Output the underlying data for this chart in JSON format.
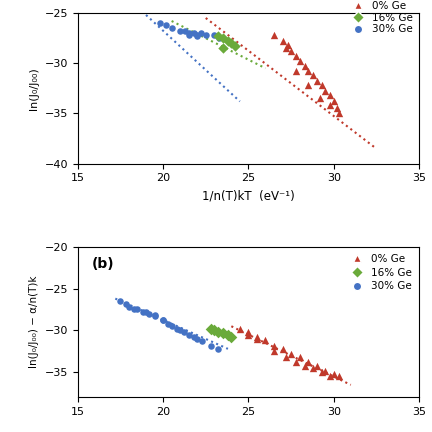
{
  "panel_a": {
    "red_x": [
      26.5,
      27.0,
      27.3,
      27.5,
      27.8,
      28.0,
      28.3,
      28.5,
      28.8,
      29.0,
      29.3,
      29.5,
      29.8,
      30.0,
      30.2,
      27.2,
      27.8,
      28.5,
      29.2,
      29.8,
      30.3
    ],
    "red_y": [
      -27.2,
      -27.8,
      -28.2,
      -28.8,
      -29.3,
      -29.8,
      -30.3,
      -30.8,
      -31.2,
      -31.8,
      -32.2,
      -32.8,
      -33.2,
      -33.8,
      -34.5,
      -28.5,
      -30.8,
      -32.2,
      -33.5,
      -34.2,
      -35.0
    ],
    "green_x": [
      23.2,
      23.5,
      23.8,
      24.0,
      24.2,
      23.5
    ],
    "green_y": [
      -27.3,
      -27.5,
      -27.8,
      -28.0,
      -28.3,
      -28.5
    ],
    "blue_x": [
      19.8,
      20.2,
      20.5,
      21.0,
      21.3,
      21.5,
      21.8,
      22.0,
      22.2,
      22.5,
      23.0,
      23.3,
      21.5,
      22.0
    ],
    "blue_y": [
      -26.0,
      -26.2,
      -26.5,
      -26.8,
      -26.8,
      -27.0,
      -27.0,
      -27.2,
      -27.0,
      -27.2,
      -27.2,
      -27.5,
      -27.2,
      -27.3
    ],
    "red_fit_x": [
      22.5,
      32.5
    ],
    "red_fit_y": [
      -25.5,
      -38.5
    ],
    "green_fit_x": [
      20.5,
      26.0
    ],
    "green_fit_y": [
      -25.8,
      -30.5
    ],
    "blue_fit_x": [
      19.0,
      24.5
    ],
    "blue_fit_y": [
      -25.2,
      -33.8
    ],
    "xlim": [
      15,
      35
    ],
    "ylim": [
      -40,
      -25
    ],
    "yticks": [
      -40,
      -35,
      -30,
      -25
    ],
    "xticks": [
      15,
      20,
      25,
      30,
      35
    ],
    "xlabel": "1/n(T)kT  (eV⁻¹)",
    "ylabel": "ln(J₀/J₀₀)"
  },
  "panel_b": {
    "red_x": [
      24.5,
      25.0,
      25.5,
      26.0,
      26.5,
      27.0,
      27.5,
      28.0,
      28.5,
      29.0,
      29.5,
      30.0,
      30.3,
      26.5,
      27.2,
      27.8,
      28.3,
      28.8,
      29.3,
      29.8,
      25.0,
      25.5
    ],
    "red_y": [
      -29.8,
      -30.2,
      -30.8,
      -31.2,
      -31.8,
      -32.2,
      -32.8,
      -33.2,
      -33.8,
      -34.2,
      -34.8,
      -35.2,
      -35.5,
      -32.5,
      -33.2,
      -33.8,
      -34.2,
      -34.5,
      -35.0,
      -35.5,
      -30.5,
      -31.0
    ],
    "green_x": [
      22.8,
      23.0,
      23.2,
      23.5,
      23.8,
      24.0
    ],
    "green_y": [
      -29.8,
      -30.0,
      -30.2,
      -30.3,
      -30.5,
      -30.8
    ],
    "blue_x": [
      17.5,
      18.0,
      18.3,
      18.8,
      19.2,
      19.5,
      20.0,
      20.3,
      20.8,
      21.2,
      21.5,
      22.0,
      22.3,
      22.8,
      23.2,
      18.5,
      19.0,
      19.5,
      20.0,
      20.5,
      21.0,
      21.8,
      17.8
    ],
    "blue_y": [
      -26.5,
      -27.2,
      -27.5,
      -27.8,
      -28.0,
      -28.3,
      -28.8,
      -29.2,
      -29.8,
      -30.2,
      -30.5,
      -31.0,
      -31.3,
      -31.8,
      -32.2,
      -27.5,
      -27.8,
      -28.2,
      -28.8,
      -29.5,
      -30.0,
      -30.8,
      -26.8
    ],
    "red_fit_x": [
      24.0,
      31.0
    ],
    "red_fit_y": [
      -29.5,
      -36.5
    ],
    "blue_fit_x": [
      17.2,
      23.8
    ],
    "blue_fit_y": [
      -26.2,
      -32.2
    ],
    "xlim": [
      15,
      35
    ],
    "ylim": [
      -38,
      -20
    ],
    "yticks": [
      -35,
      -30,
      -25,
      -20
    ],
    "xticks": [
      15,
      20,
      25,
      30,
      35
    ],
    "ylabel": "ln(J₀/J₀₀) − α/n(T)k",
    "panel_label": "(b)"
  },
  "colors": {
    "red": "#c0392b",
    "green": "#6aaa3a",
    "blue": "#4472c4"
  }
}
